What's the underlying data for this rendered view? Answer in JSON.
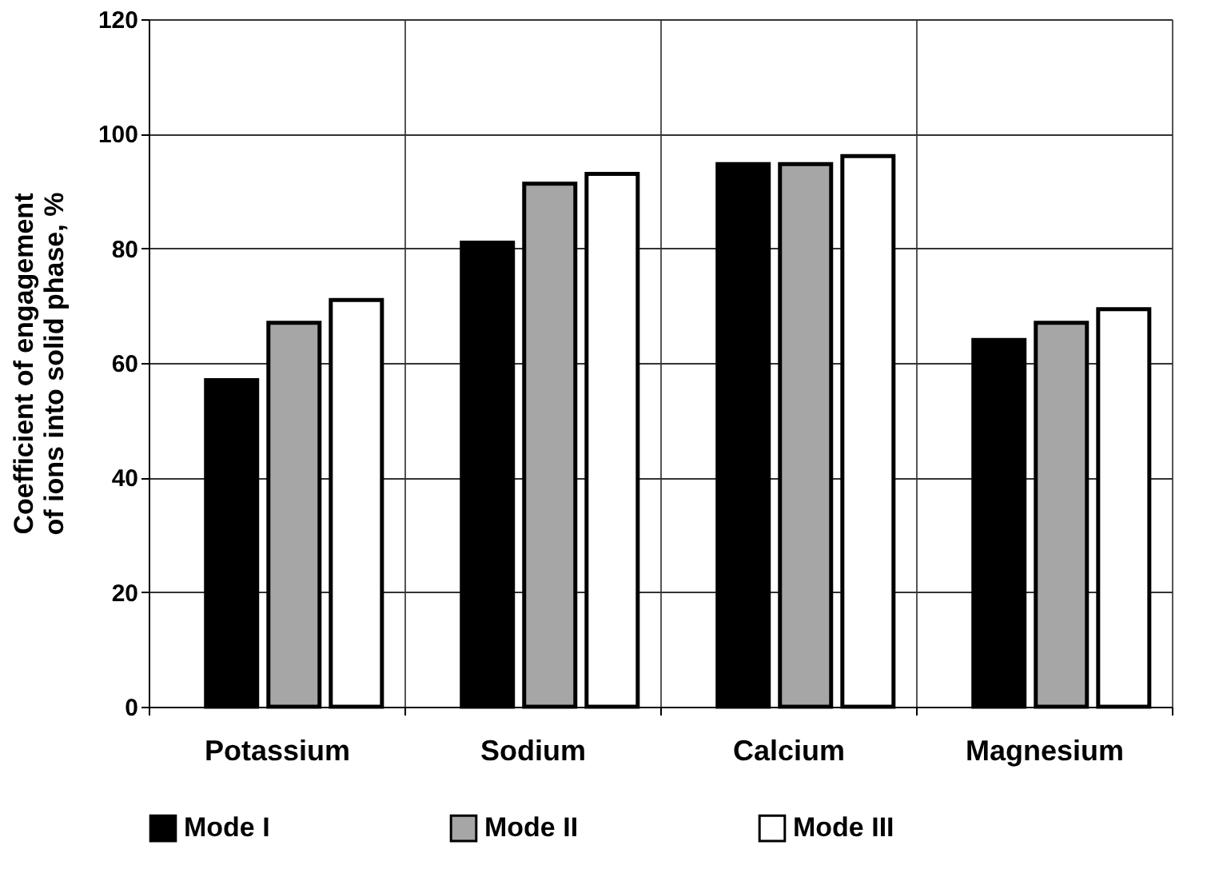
{
  "chart_data": {
    "type": "bar",
    "ylabel": "Coefficient of engagement\nof ions into solid phase, %",
    "categories": [
      "Potassium",
      "Sodium",
      "Calcium",
      "Magnesium"
    ],
    "series": [
      {
        "name": "Mode I",
        "color": "#000000",
        "values": [
          57,
          81,
          94.7,
          64
        ]
      },
      {
        "name": "Mode II",
        "color": "#a6a6a6",
        "values": [
          67,
          91.3,
          94.7,
          67
        ]
      },
      {
        "name": "Mode III",
        "color": "#ffffff",
        "values": [
          71,
          93,
          96.1,
          69.4
        ]
      }
    ],
    "ylim": [
      0,
      120
    ],
    "yticks": [
      0,
      20,
      40,
      60,
      80,
      100,
      120
    ],
    "grid": true,
    "legend": "bottom"
  }
}
